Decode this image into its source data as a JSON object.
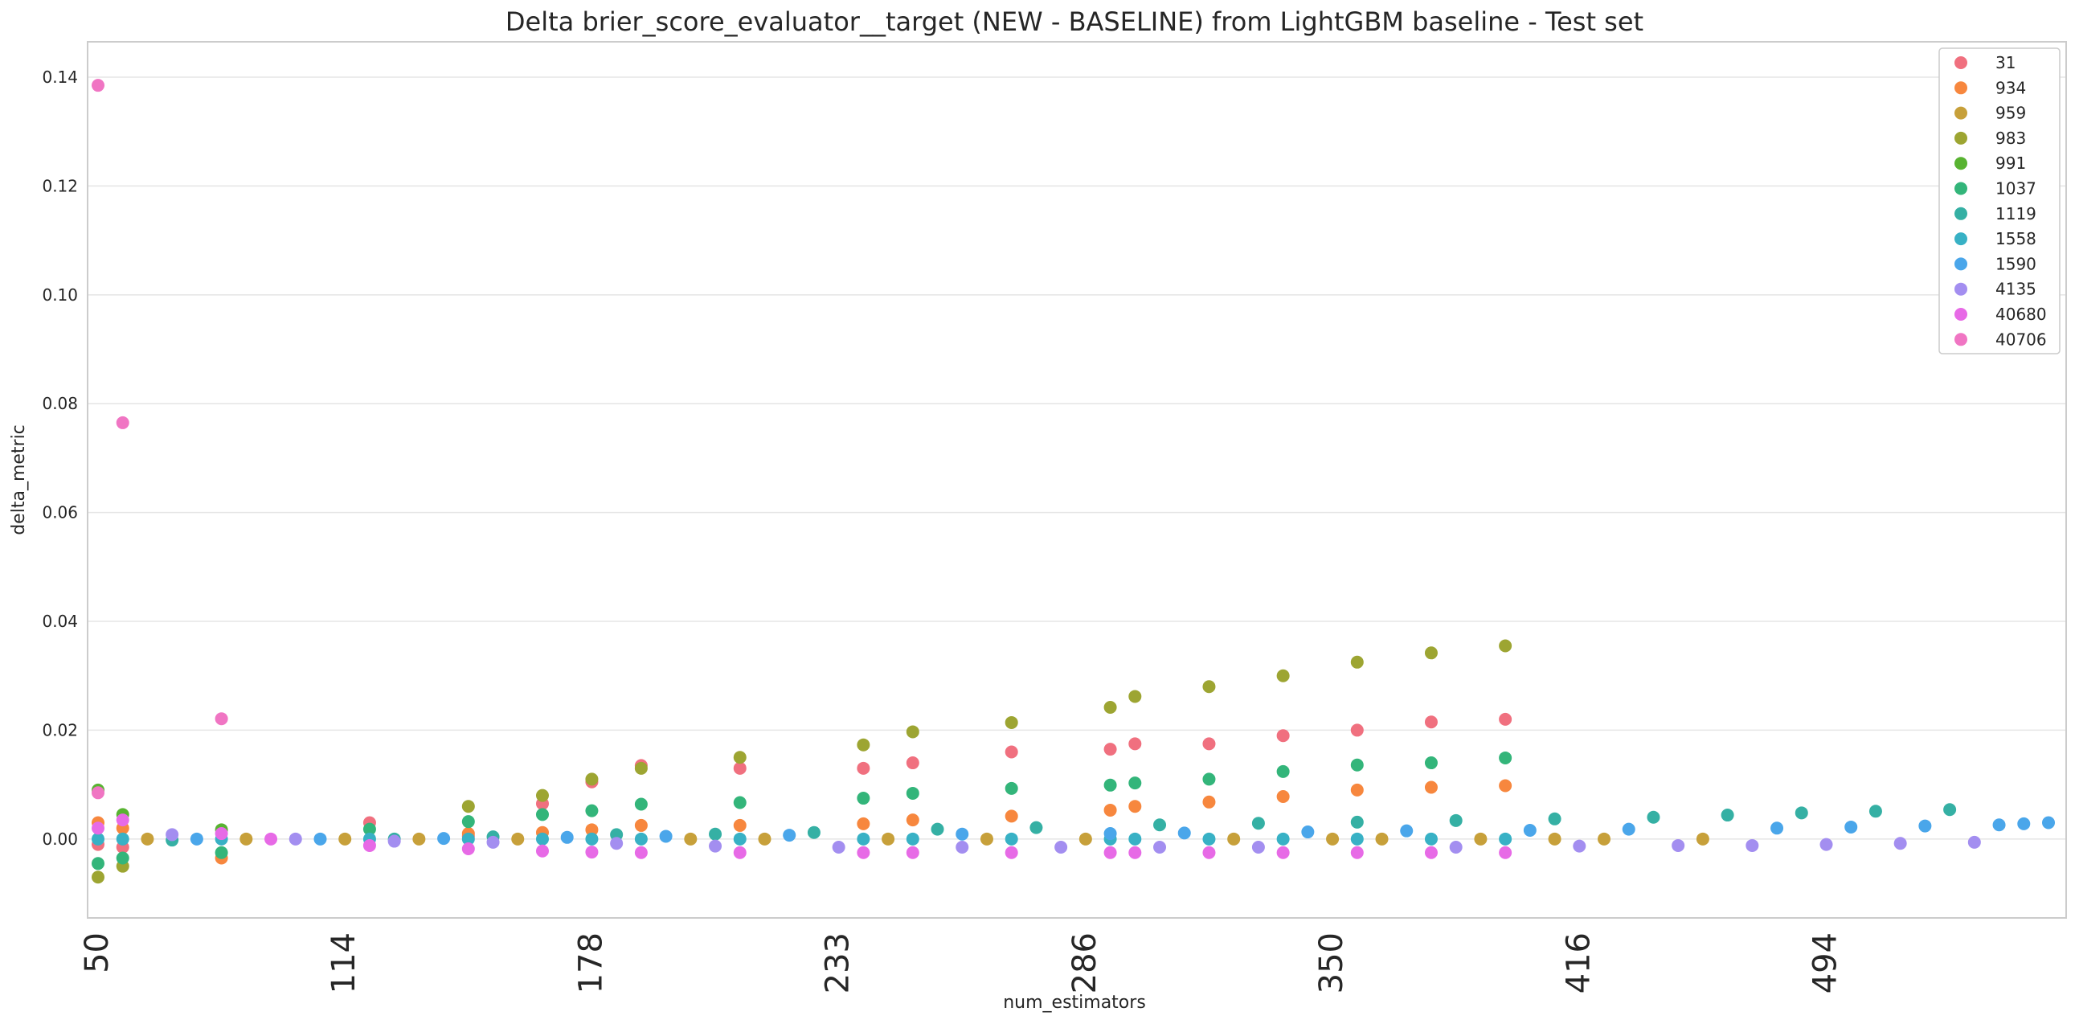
{
  "chart_data": {
    "type": "scatter",
    "title": "Delta brier_score_evaluator__target (NEW - BASELINE) from LightGBM baseline - Test set",
    "xlabel": "num_estimators",
    "ylabel": "delta_metric",
    "xaxis_kind": "categorical",
    "num_categories": 80,
    "x_tick_labels": [
      {
        "cat": 0,
        "label": "50"
      },
      {
        "cat": 10,
        "label": "114"
      },
      {
        "cat": 20,
        "label": "178"
      },
      {
        "cat": 30,
        "label": "233"
      },
      {
        "cat": 40,
        "label": "286"
      },
      {
        "cat": 50,
        "label": "350"
      },
      {
        "cat": 60,
        "label": "416"
      },
      {
        "cat": 70,
        "label": "494"
      }
    ],
    "ylim": [
      -0.0145,
      0.1465
    ],
    "y_ticks": [
      "0.00",
      "0.02",
      "0.04",
      "0.06",
      "0.08",
      "0.10",
      "0.12",
      "0.14"
    ],
    "grid": "horizontal",
    "legend_position": "top-right",
    "series": [
      {
        "name": "31",
        "color": "#f0707f",
        "points": [
          [
            0,
            -0.001
          ],
          [
            1,
            -0.0015
          ],
          [
            11,
            0.003
          ],
          [
            15,
            0.0005
          ],
          [
            18,
            0.0065
          ],
          [
            20,
            0.0105
          ],
          [
            22,
            0.0135
          ],
          [
            26,
            0.013
          ],
          [
            31,
            0.013
          ],
          [
            33,
            0.014
          ],
          [
            37,
            0.016
          ],
          [
            41,
            0.0165
          ],
          [
            42,
            0.0175
          ],
          [
            45,
            0.0175
          ],
          [
            48,
            0.019
          ],
          [
            51,
            0.02
          ],
          [
            54,
            0.0215
          ],
          [
            57,
            0.022
          ]
        ]
      },
      {
        "name": "934",
        "color": "#f7873e",
        "points": [
          [
            0,
            0.003
          ],
          [
            1,
            0.002
          ],
          [
            5,
            -0.0035
          ],
          [
            15,
            0.001
          ],
          [
            18,
            0.0012
          ],
          [
            20,
            0.0017
          ],
          [
            22,
            0.0025
          ],
          [
            26,
            0.0025
          ],
          [
            31,
            0.0028
          ],
          [
            33,
            0.0035
          ],
          [
            37,
            0.0042
          ],
          [
            41,
            0.0053
          ],
          [
            42,
            0.006
          ],
          [
            45,
            0.0068
          ],
          [
            48,
            0.0078
          ],
          [
            51,
            0.009
          ],
          [
            54,
            0.0095
          ],
          [
            57,
            0.0098
          ]
        ]
      },
      {
        "name": "959",
        "color": "#c7a03a",
        "points": [
          [
            2,
            0
          ],
          [
            6,
            0
          ],
          [
            10,
            0
          ],
          [
            13,
            0
          ],
          [
            17,
            0
          ],
          [
            24,
            0
          ],
          [
            27,
            0
          ],
          [
            32,
            0
          ],
          [
            36,
            0
          ],
          [
            40,
            0
          ],
          [
            46,
            0
          ],
          [
            50,
            0
          ],
          [
            52,
            0
          ],
          [
            56,
            0
          ],
          [
            59,
            0
          ],
          [
            61,
            0
          ],
          [
            65,
            0
          ]
        ]
      },
      {
        "name": "983",
        "color": "#9da532",
        "points": [
          [
            0,
            -0.007
          ],
          [
            1,
            -0.005
          ],
          [
            15,
            0.006
          ],
          [
            18,
            0.008
          ],
          [
            20,
            0.011
          ],
          [
            22,
            0.013
          ],
          [
            26,
            0.015
          ],
          [
            31,
            0.0173
          ],
          [
            33,
            0.0197
          ],
          [
            37,
            0.0214
          ],
          [
            41,
            0.0242
          ],
          [
            42,
            0.0262
          ],
          [
            45,
            0.028
          ],
          [
            48,
            0.03
          ],
          [
            51,
            0.0325
          ],
          [
            54,
            0.0342
          ],
          [
            57,
            0.0355
          ]
        ]
      },
      {
        "name": "991",
        "color": "#58b331",
        "points": [
          [
            0,
            0.009
          ],
          [
            1,
            0.0045
          ],
          [
            5,
            0.0017
          ]
        ]
      },
      {
        "name": "1037",
        "color": "#33b57a",
        "points": [
          [
            0,
            -0.0045
          ],
          [
            1,
            -0.0035
          ],
          [
            5,
            -0.0025
          ],
          [
            11,
            0.0018
          ],
          [
            15,
            0.0032
          ],
          [
            18,
            0.0045
          ],
          [
            20,
            0.0052
          ],
          [
            22,
            0.0064
          ],
          [
            26,
            0.0067
          ],
          [
            31,
            0.0075
          ],
          [
            33,
            0.0084
          ],
          [
            37,
            0.0093
          ],
          [
            41,
            0.0099
          ],
          [
            42,
            0.0103
          ],
          [
            45,
            0.011
          ],
          [
            48,
            0.0124
          ],
          [
            51,
            0.0136
          ],
          [
            54,
            0.014
          ],
          [
            57,
            0.0149
          ]
        ]
      },
      {
        "name": "1119",
        "color": "#35b0a4",
        "points": [
          [
            3,
            -0.0002
          ],
          [
            12,
            0
          ],
          [
            16,
            0.0004
          ],
          [
            21,
            0.0008
          ],
          [
            25,
            0.0009
          ],
          [
            29,
            0.0012
          ],
          [
            34,
            0.0018
          ],
          [
            38,
            0.0021
          ],
          [
            43,
            0.0026
          ],
          [
            47,
            0.0029
          ],
          [
            51,
            0.0031
          ],
          [
            55,
            0.0034
          ],
          [
            59,
            0.0037
          ],
          [
            63,
            0.004
          ],
          [
            66,
            0.0044
          ],
          [
            69,
            0.0048
          ],
          [
            72,
            0.0051
          ],
          [
            75,
            0.0054
          ]
        ]
      },
      {
        "name": "1558",
        "color": "#38b1c5",
        "points": [
          [
            0,
            0
          ],
          [
            1,
            0
          ],
          [
            5,
            0
          ],
          [
            11,
            0
          ],
          [
            15,
            0
          ],
          [
            18,
            0
          ],
          [
            20,
            0
          ],
          [
            22,
            0
          ],
          [
            26,
            0
          ],
          [
            31,
            0
          ],
          [
            33,
            0
          ],
          [
            37,
            0
          ],
          [
            41,
            0
          ],
          [
            42,
            0
          ],
          [
            45,
            0
          ],
          [
            48,
            0
          ],
          [
            51,
            0
          ],
          [
            54,
            0
          ],
          [
            57,
            0
          ]
        ]
      },
      {
        "name": "1590",
        "color": "#4aa6ea",
        "points": [
          [
            4,
            0
          ],
          [
            9,
            0
          ],
          [
            14,
            0.0001
          ],
          [
            19,
            0.0003
          ],
          [
            23,
            0.0005
          ],
          [
            28,
            0.0007
          ],
          [
            35,
            0.0009
          ],
          [
            41,
            0.001
          ],
          [
            44,
            0.0011
          ],
          [
            49,
            0.0013
          ],
          [
            53,
            0.0015
          ],
          [
            58,
            0.0016
          ],
          [
            62,
            0.0018
          ],
          [
            68,
            0.002
          ],
          [
            71,
            0.0022
          ],
          [
            74,
            0.0024
          ],
          [
            77,
            0.0026
          ],
          [
            78,
            0.0028
          ],
          [
            79,
            0.003
          ]
        ]
      },
      {
        "name": "4135",
        "color": "#a38ef0",
        "points": [
          [
            3,
            0.0008
          ],
          [
            8,
            0
          ],
          [
            12,
            -0.0004
          ],
          [
            16,
            -0.0006
          ],
          [
            21,
            -0.0008
          ],
          [
            25,
            -0.0013
          ],
          [
            30,
            -0.0015
          ],
          [
            35,
            -0.0015
          ],
          [
            39,
            -0.0015
          ],
          [
            43,
            -0.0015
          ],
          [
            47,
            -0.0015
          ],
          [
            55,
            -0.0015
          ],
          [
            60,
            -0.0013
          ],
          [
            64,
            -0.0012
          ],
          [
            67,
            -0.0012
          ],
          [
            70,
            -0.001
          ],
          [
            73,
            -0.0008
          ],
          [
            76,
            -0.0006
          ]
        ]
      },
      {
        "name": "40680",
        "color": "#e76ae6",
        "points": [
          [
            0,
            0.002
          ],
          [
            1,
            0.0035
          ],
          [
            5,
            0.001
          ],
          [
            7,
            0
          ],
          [
            11,
            -0.0012
          ],
          [
            15,
            -0.0018
          ],
          [
            18,
            -0.0022
          ],
          [
            20,
            -0.0024
          ],
          [
            22,
            -0.0025
          ],
          [
            26,
            -0.0025
          ],
          [
            31,
            -0.0025
          ],
          [
            33,
            -0.0025
          ],
          [
            37,
            -0.0025
          ],
          [
            41,
            -0.0025
          ],
          [
            42,
            -0.0025
          ],
          [
            45,
            -0.0025
          ],
          [
            48,
            -0.0025
          ],
          [
            51,
            -0.0025
          ],
          [
            54,
            -0.0025
          ],
          [
            57,
            -0.0025
          ]
        ]
      },
      {
        "name": "40706",
        "color": "#f075c3",
        "points": [
          [
            0,
            0.1385
          ],
          [
            0,
            0.0085
          ],
          [
            1,
            0.0765
          ],
          [
            5,
            0.0221
          ]
        ]
      }
    ]
  }
}
